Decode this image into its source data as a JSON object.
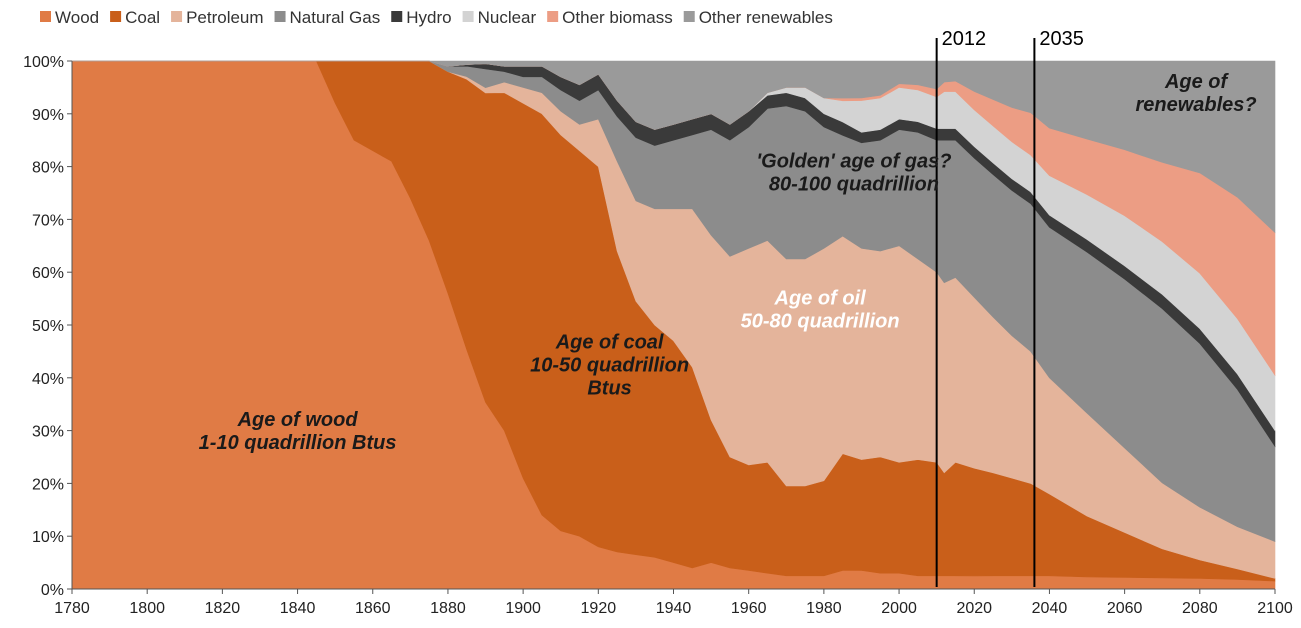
{
  "chart_data": {
    "type": "area",
    "stacked": true,
    "normalized_percent": true,
    "title": "",
    "xlabel": "",
    "ylabel": "",
    "xlim": [
      1780,
      2100
    ],
    "ylim": [
      0,
      100
    ],
    "x_ticks": [
      "1780",
      "1800",
      "1820",
      "1840",
      "1860",
      "1880",
      "1900",
      "1920",
      "1940",
      "1960",
      "1980",
      "2000",
      "2020",
      "2040",
      "2060",
      "2080",
      "2100"
    ],
    "y_ticks": [
      "0%",
      "10%",
      "20%",
      "30%",
      "40%",
      "50%",
      "60%",
      "70%",
      "80%",
      "90%",
      "100%"
    ],
    "grid": false,
    "legend_position": "top-left",
    "x": [
      1780,
      1800,
      1820,
      1840,
      1845,
      1850,
      1855,
      1860,
      1865,
      1870,
      1875,
      1880,
      1885,
      1890,
      1895,
      1900,
      1905,
      1910,
      1915,
      1920,
      1925,
      1930,
      1935,
      1940,
      1945,
      1950,
      1955,
      1960,
      1965,
      1970,
      1975,
      1980,
      1985,
      1990,
      1995,
      2000,
      2005,
      2010,
      2012,
      2015,
      2020,
      2025,
      2030,
      2035,
      2040,
      2050,
      2060,
      2070,
      2080,
      2090,
      2100
    ],
    "series": [
      {
        "name": "Wood",
        "color": "#E07B45",
        "values": [
          100,
          100,
          100,
          100,
          100,
          92,
          85,
          83,
          81,
          74,
          66,
          56,
          46,
          35,
          30,
          21,
          14,
          11,
          10,
          8,
          7,
          6.5,
          6,
          5,
          4,
          5,
          4,
          3.5,
          3,
          2.5,
          2.5,
          2.5,
          3.5,
          3.5,
          3,
          3,
          2.5,
          2.5,
          2.5,
          2.5,
          2.5,
          2.5,
          2.5,
          2.5,
          2.5,
          2.3,
          2.2,
          2.1,
          2,
          1.8,
          1.5
        ]
      },
      {
        "name": "Coal",
        "color": "#C95F1A",
        "values": [
          0,
          0,
          0,
          0,
          0,
          8,
          15,
          17,
          19,
          26,
          34,
          42,
          52,
          58,
          64,
          71,
          76,
          75,
          73,
          72,
          57,
          48,
          44,
          42,
          38,
          27,
          21,
          20,
          21,
          17,
          17,
          18,
          22,
          21,
          22,
          21,
          22,
          21.5,
          19.5,
          21.5,
          20.5,
          19.5,
          18.5,
          17.5,
          15.5,
          11.5,
          8.5,
          5.5,
          3.5,
          2,
          0.5
        ]
      },
      {
        "name": "Petroleum",
        "color": "#E4B49B",
        "values": [
          0,
          0,
          0,
          0,
          0,
          0,
          0,
          0,
          0,
          0,
          0,
          0,
          0.5,
          1,
          2,
          3,
          4,
          4.5,
          5,
          9,
          17,
          19,
          22,
          25,
          30,
          35,
          38,
          41,
          42,
          43,
          43,
          44,
          41,
          40,
          39,
          41,
          38,
          36,
          36,
          35,
          32.5,
          29.5,
          27,
          25,
          22,
          19.5,
          16,
          12.5,
          10,
          8,
          7
        ]
      },
      {
        "name": "Natural Gas",
        "color": "#8C8C8C",
        "values": [
          0,
          0,
          0,
          0,
          0,
          0,
          0,
          0,
          0,
          0,
          0,
          1,
          2,
          3.5,
          2,
          2,
          3,
          4,
          4.5,
          5.5,
          8.5,
          12,
          12,
          13,
          14,
          20,
          22,
          23,
          25,
          29,
          28,
          23,
          19,
          20,
          21,
          22,
          24,
          25,
          27,
          26,
          26.5,
          27,
          27.5,
          28,
          28.5,
          30.5,
          32,
          33,
          31,
          26,
          18
        ]
      },
      {
        "name": "Hydro",
        "color": "#3A3A3A",
        "values": [
          0,
          0,
          0,
          0,
          0,
          0,
          0,
          0,
          0,
          0,
          0,
          0,
          0.3,
          1,
          1,
          2,
          2,
          2.5,
          3,
          3,
          3,
          3,
          3,
          3,
          3,
          3,
          3,
          3,
          2.5,
          2.5,
          2.5,
          2.5,
          2.5,
          2,
          2,
          2,
          2,
          2.2,
          2.2,
          2.2,
          2.2,
          2.2,
          2.2,
          2.2,
          2.3,
          2.4,
          2.5,
          2.7,
          2.8,
          2.9,
          3
        ]
      },
      {
        "name": "Nuclear",
        "color": "#D3D3D3",
        "values": [
          0,
          0,
          0,
          0,
          0,
          0,
          0,
          0,
          0,
          0,
          0,
          0,
          0,
          0,
          0,
          0,
          0,
          0,
          0,
          0,
          0,
          0,
          0,
          0,
          0,
          0,
          0,
          0,
          0.5,
          1,
          2,
          3,
          4,
          6,
          6,
          6,
          6,
          6,
          7,
          7,
          7,
          7,
          7,
          7,
          7.5,
          8.5,
          9.5,
          10,
          10.5,
          10.5,
          10.5
        ]
      },
      {
        "name": "Other biomass",
        "color": "#EC9D84",
        "values": [
          0,
          0,
          0,
          0,
          0,
          0,
          0,
          0,
          0,
          0,
          0,
          0,
          0,
          0,
          0,
          0,
          0,
          0,
          0,
          0,
          0,
          0,
          0,
          0,
          0,
          0,
          0,
          0,
          0,
          0,
          0,
          0,
          0.5,
          0.5,
          0.5,
          0.7,
          1,
          1.5,
          1.8,
          2,
          3.5,
          5,
          6.5,
          8,
          9,
          10.5,
          12.5,
          15,
          19,
          23,
          27
        ]
      },
      {
        "name": "Other renewables",
        "color": "#9A9A9A",
        "values": [
          0,
          0,
          0,
          0,
          0,
          0,
          0,
          0,
          0,
          0,
          0,
          1,
          0.7,
          0.5,
          1,
          1,
          1,
          3,
          4.5,
          2.5,
          7.5,
          11.5,
          13,
          12,
          11,
          10,
          12,
          9.5,
          6,
          5,
          5,
          7,
          7,
          7,
          6.5,
          4.3,
          4.5,
          5.3,
          4,
          3.8,
          5.8,
          7.3,
          8.8,
          9.8,
          12.7,
          14.8,
          16.8,
          19.2,
          21.2,
          25.8,
          32.5
        ]
      }
    ],
    "reference_lines": [
      {
        "x": 2010,
        "label": "2012"
      },
      {
        "x": 2036,
        "label": "2035"
      }
    ],
    "annotations": [
      {
        "lines": [
          "Age of wood",
          "1-10 quadrillion Btus"
        ],
        "x": 1840,
        "y": 30,
        "color": "#1a1a1a"
      },
      {
        "lines": [
          "Age of coal",
          "10-50 quadrillion",
          "Btus"
        ],
        "x": 1923,
        "y": 42.5,
        "color": "#1a1a1a"
      },
      {
        "lines": [
          "Age of oil",
          "50-80 quadrillion"
        ],
        "x": 1979,
        "y": 53,
        "color": "#ffffff"
      },
      {
        "lines": [
          "'Golden' age of gas?",
          "80-100 quadrillion"
        ],
        "x": 1988,
        "y": 79,
        "color": "#1a1a1a"
      },
      {
        "lines": [
          "Age of",
          "renewables?"
        ],
        "x": 2079,
        "y": 94,
        "color": "#1a1a1a"
      }
    ]
  }
}
